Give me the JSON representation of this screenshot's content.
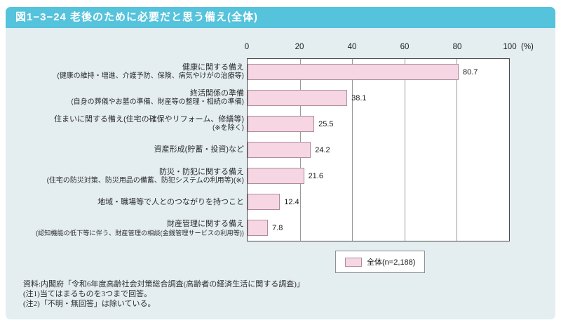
{
  "header": {
    "title": "図1−3−24 老後のために必要だと思う備え(全体)"
  },
  "chart_data": {
    "type": "bar",
    "orientation": "horizontal",
    "title": "図1−3−24 老後のために必要だと思う備え(全体)",
    "categories": [
      "健康に関する備え",
      "終活関係の準備",
      "住まいに関する備え(住宅の確保やリフォーム、修繕等)",
      "資産形成(貯蓄・投資)など",
      "防災・防犯に関する備え",
      "地域・職場等で人とのつながりを持つこと",
      "財産管理に関する備え"
    ],
    "category_notes": [
      "(健康の維持・増進、介護予防、保険、病気やけがの治療等)",
      "(自身の葬儀やお墓の準備、財産等の整理・相続の準備)",
      "(※を除く)",
      "",
      "(住宅の防災対策、防災用品の備蓄、防犯システムの利用等)(※)",
      "",
      "(認知機能の低下等に伴う、財産管理の相談(金銭管理サービスの利用等))"
    ],
    "values": [
      80.7,
      38.1,
      25.5,
      24.2,
      21.6,
      12.4,
      7.8
    ],
    "xlim": [
      0,
      100
    ],
    "xticks": [
      "0",
      "20",
      "40",
      "60",
      "80",
      "100"
    ],
    "unit": "(%)",
    "grid": "vertical gridlines every 20",
    "legend": {
      "label": "全体(n=2,188)",
      "position": "bottom"
    },
    "colors": {
      "bar_fill": "#f6d6e3",
      "bar_border": "#b08ba0",
      "header_bg": "#55c3dc",
      "panel_bg": "#e4eef1"
    }
  },
  "footnotes": {
    "source": "資料:内閣府「令和6年度高齢社会対策総合調査(高齢者の経済生活に関する調査)」",
    "note1": "(注1)当てはまるものを3つまで回答。",
    "note2": "(注2)「不明・無回答」は除いている。"
  }
}
